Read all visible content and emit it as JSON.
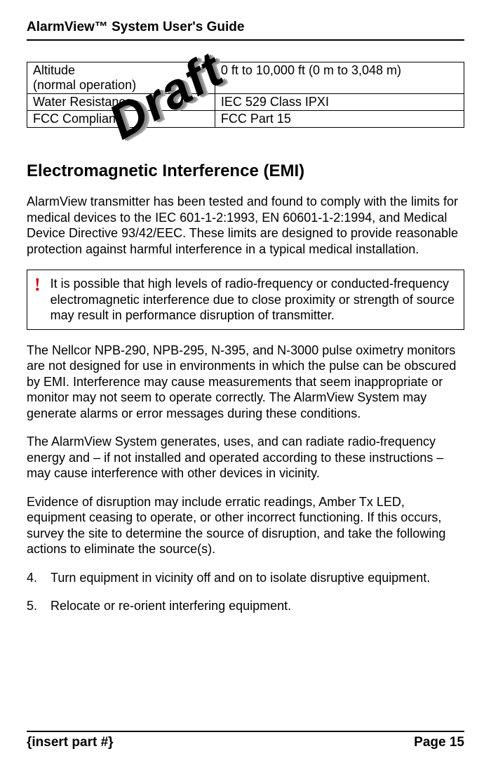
{
  "doc_title": "AlarmView™ System User's Guide",
  "spec_table": {
    "rows": [
      [
        "Altitude\n(normal operation)",
        "0 ft to 10,000 ft (0 m to 3,048 m)"
      ],
      [
        "Water Resistance",
        "IEC 529 Class IPXI"
      ],
      [
        "FCC Compliant",
        "FCC Part 15"
      ]
    ]
  },
  "section_title": "Electromagnetic Interference (EMI)",
  "para1": "AlarmView transmitter has been tested and found to comply with the limits for medical devices to the IEC 601-1-2:1993, EN 60601-1-2:1994, and Medical Device Directive 93/42/EEC. These limits are designed to provide reasonable protection against harmful interference in a typical medical installation.",
  "warning_icon": "!",
  "warning_text": "It is possible that high levels of radio-frequency or conducted-frequency electromagnetic interference due to close proximity or strength of source may result in performance disruption of transmitter.",
  "para2": "The Nellcor NPB-290, NPB-295, N-395, and N-3000 pulse oximetry monitors are not designed for use in environments in which the pulse can be obscured by EMI. Interference may cause measurements that seem inappropriate or monitor may not seem to operate correctly. The AlarmView System may generate alarms or error messages during these conditions.",
  "para3": "The AlarmView System generates, uses, and can radiate radio-frequency energy and – if not installed and operated according to these instructions – may cause interference with other devices in vicinity.",
  "para4": "Evidence of disruption may include erratic readings, Amber Tx LED, equipment ceasing to operate, or other incorrect functioning. If this occurs, survey the site to determine the source of disruption, and take the following actions to eliminate the source(s).",
  "list": [
    {
      "num": "4.",
      "text": "Turn equipment in vicinity off and on to isolate disruptive equipment."
    },
    {
      "num": "5.",
      "text": "Relocate or re-orient interfering equipment."
    }
  ],
  "footer_left": "{insert part #}",
  "footer_right": "Page 15",
  "draft_stamp": "Draft"
}
